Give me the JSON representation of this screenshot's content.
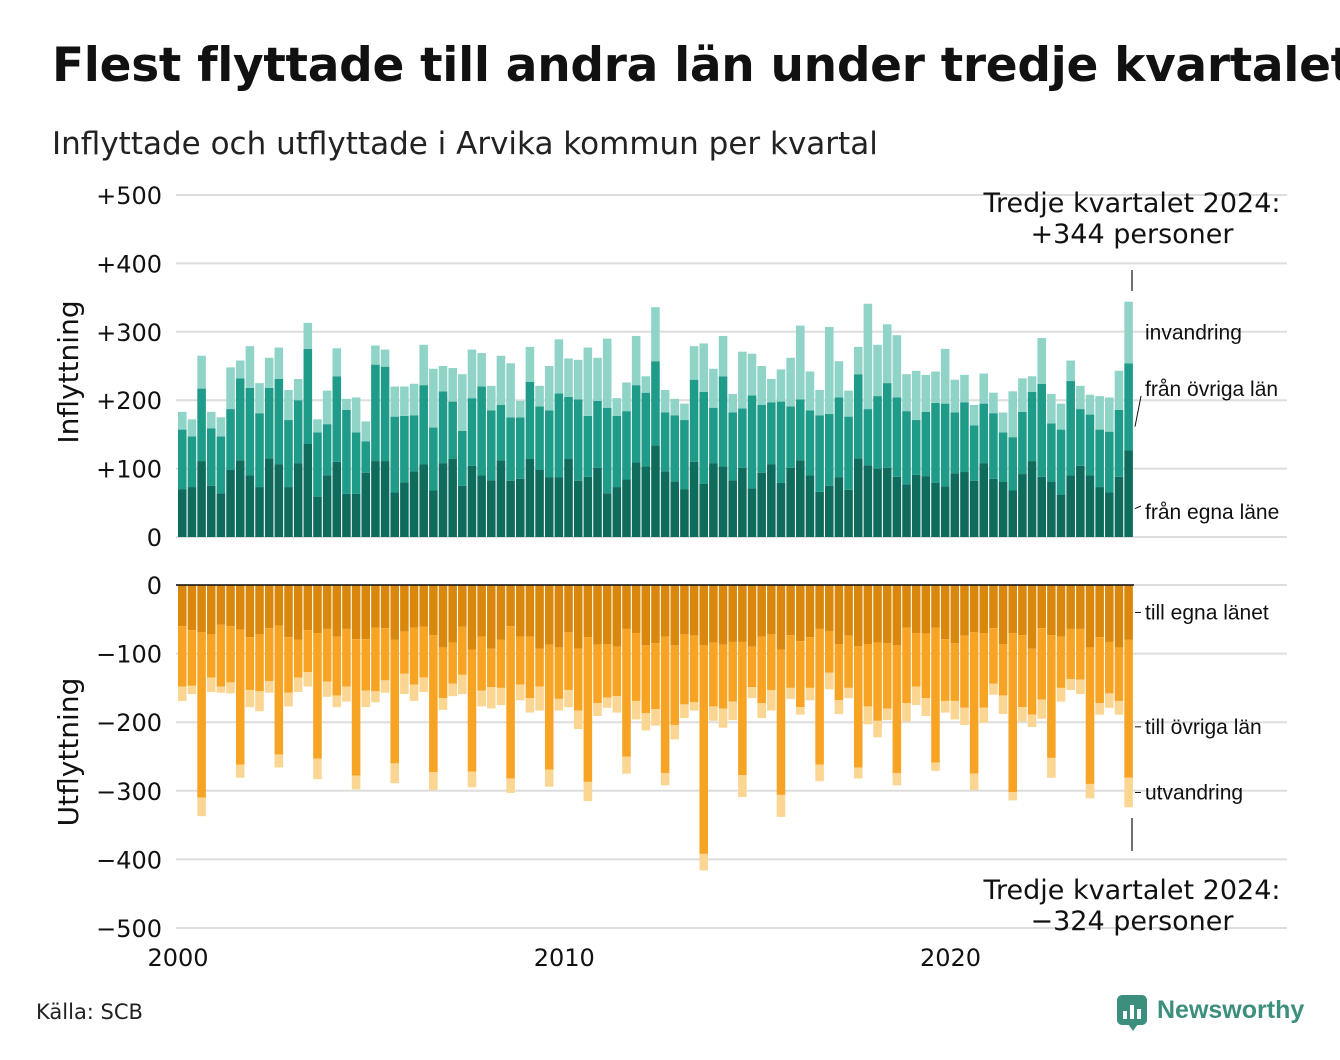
{
  "title": "Flest flyttade till andra län under tredje kvartalet",
  "subtitle": "Inflyttade och utflyttade i Arvika kommun per kvartal",
  "source": "Källa: SCB",
  "brand": "Newsworthy",
  "colors": {
    "in_egna": "#0f6b5c",
    "in_ovriga": "#1f9b89",
    "in_invandring": "#8fd4c7",
    "out_egna": "#d9880d",
    "out_ovriga": "#f7a424",
    "out_utvandring": "#fbd592",
    "brand": "#3d8f7d"
  },
  "chart_data": [
    {
      "type": "bar",
      "stacked": true,
      "ylabel": "Inflyttning",
      "ylim": [
        0,
        500
      ],
      "yticks": [
        0,
        100,
        200,
        300,
        400,
        500
      ],
      "ytick_labels": [
        "0",
        "+100",
        "+200",
        "+300",
        "+400",
        "+500"
      ],
      "x_start": "2000 Q1",
      "x_end": "2024 Q3",
      "x_ticks": [
        "2000",
        "2010",
        "2020"
      ],
      "grid": true,
      "series": [
        {
          "name": "från egna läne",
          "values": [
            70,
            73,
            111,
            75,
            64,
            98,
            112,
            90,
            73,
            115,
            106,
            73,
            108,
            136,
            59,
            90,
            110,
            63,
            63,
            94,
            111,
            111,
            65,
            80,
            96,
            106,
            68,
            108,
            114,
            75,
            104,
            90,
            83,
            112,
            82,
            85,
            114,
            98,
            87,
            87,
            114,
            82,
            88,
            101,
            64,
            73,
            84,
            109,
            103,
            134,
            96,
            81,
            70,
            110,
            78,
            108,
            103,
            83,
            101,
            71,
            94,
            106,
            79,
            101,
            112,
            90,
            66,
            75,
            87,
            69,
            115,
            105,
            100,
            101,
            88,
            77,
            91,
            89,
            79,
            74,
            93,
            95,
            82,
            108,
            85,
            81,
            68,
            92,
            111,
            88,
            81,
            62,
            90,
            104,
            90,
            73,
            65,
            88,
            127
          ]
        },
        {
          "name": "från övriga län",
          "values": [
            87,
            74,
            106,
            84,
            83,
            89,
            120,
            128,
            108,
            103,
            125,
            98,
            92,
            139,
            94,
            75,
            125,
            123,
            90,
            46,
            141,
            138,
            111,
            97,
            82,
            116,
            92,
            105,
            84,
            80,
            99,
            130,
            102,
            81,
            93,
            90,
            113,
            93,
            98,
            123,
            91,
            119,
            89,
            98,
            125,
            104,
            100,
            113,
            108,
            123,
            86,
            97,
            101,
            120,
            134,
            81,
            132,
            99,
            87,
            136,
            99,
            91,
            119,
            90,
            89,
            95,
            112,
            105,
            117,
            107,
            123,
            82,
            106,
            124,
            116,
            107,
            80,
            94,
            117,
            121,
            89,
            102,
            81,
            87,
            96,
            72,
            78,
            91,
            101,
            136,
            85,
            95,
            138,
            83,
            89,
            84,
            89,
            98,
            127
          ]
        },
        {
          "name": "invandring",
          "values": [
            26,
            25,
            48,
            24,
            28,
            61,
            26,
            61,
            44,
            44,
            46,
            44,
            31,
            38,
            19,
            49,
            41,
            16,
            51,
            29,
            28,
            25,
            44,
            43,
            46,
            59,
            86,
            37,
            49,
            83,
            71,
            49,
            36,
            72,
            79,
            24,
            51,
            30,
            65,
            79,
            56,
            58,
            100,
            63,
            101,
            26,
            42,
            72,
            24,
            79,
            33,
            24,
            24,
            49,
            71,
            57,
            59,
            27,
            83,
            61,
            57,
            34,
            47,
            71,
            108,
            57,
            37,
            127,
            53,
            38,
            40,
            154,
            75,
            86,
            91,
            54,
            72,
            54,
            46,
            80,
            48,
            40,
            30,
            44,
            30,
            29,
            67,
            49,
            23,
            67,
            43,
            38,
            30,
            34,
            29,
            49,
            50,
            57,
            90
          ]
        }
      ]
    },
    {
      "type": "bar",
      "stacked": true,
      "ylabel": "Utflyttning",
      "ylim": [
        -500,
        0
      ],
      "yticks": [
        0,
        -100,
        -200,
        -300,
        -400,
        -500
      ],
      "ytick_labels": [
        "0",
        "−100",
        "−200",
        "−300",
        "−400",
        "−500"
      ],
      "x_start": "2000 Q1",
      "x_end": "2024 Q3",
      "x_ticks": [
        "2000",
        "2010",
        "2020"
      ],
      "grid": true,
      "series": [
        {
          "name": "till egna länet",
          "values": [
            -60,
            -66,
            -69,
            -72,
            -58,
            -60,
            -65,
            -76,
            -72,
            -63,
            -59,
            -76,
            -80,
            -66,
            -70,
            -64,
            -75,
            -64,
            -79,
            -79,
            -62,
            -63,
            -80,
            -68,
            -62,
            -61,
            -73,
            -91,
            -84,
            -61,
            -94,
            -75,
            -93,
            -80,
            -60,
            -75,
            -75,
            -93,
            -87,
            -91,
            -69,
            -93,
            -76,
            -87,
            -86,
            -90,
            -64,
            -70,
            -88,
            -85,
            -75,
            -88,
            -72,
            -74,
            -88,
            -84,
            -87,
            -83,
            -83,
            -90,
            -75,
            -72,
            -94,
            -73,
            -82,
            -76,
            -64,
            -67,
            -86,
            -74,
            -89,
            -86,
            -84,
            -85,
            -88,
            -62,
            -70,
            -71,
            -62,
            -79,
            -85,
            -74,
            -69,
            -70,
            -63,
            -86,
            -70,
            -73,
            -93,
            -63,
            -73,
            -75,
            -64,
            -64,
            -91,
            -76,
            -83,
            -91,
            -80
          ]
        },
        {
          "name": "till övriga län",
          "values": [
            -88,
            -81,
            -241,
            -63,
            -90,
            -82,
            -197,
            -77,
            -83,
            -77,
            -188,
            -81,
            -55,
            -61,
            -183,
            -77,
            -86,
            -84,
            -199,
            -75,
            -93,
            -76,
            -180,
            -61,
            -83,
            -74,
            -200,
            -74,
            -60,
            -70,
            -178,
            -79,
            -56,
            -70,
            -222,
            -70,
            -90,
            -55,
            -182,
            -75,
            -84,
            -90,
            -211,
            -85,
            -78,
            -72,
            -186,
            -99,
            -99,
            -96,
            -199,
            -116,
            -102,
            -97,
            -304,
            -93,
            -93,
            -87,
            -194,
            -59,
            -97,
            -81,
            -212,
            -77,
            -96,
            -74,
            -198,
            -61,
            -82,
            -76,
            -177,
            -91,
            -114,
            -95,
            -186,
            -110,
            -78,
            -94,
            -197,
            -90,
            -84,
            -105,
            -206,
            -109,
            -81,
            -75,
            -232,
            -105,
            -96,
            -104,
            -179,
            -75,
            -73,
            -74,
            -199,
            -96,
            -75,
            -78,
            -201
          ]
        },
        {
          "name": "utvandring",
          "values": [
            -21,
            -12,
            -27,
            -21,
            -9,
            -16,
            -19,
            -25,
            -29,
            -17,
            -19,
            -20,
            -21,
            -21,
            -30,
            -22,
            -17,
            -22,
            -20,
            -24,
            -16,
            -18,
            -29,
            -30,
            -24,
            -21,
            -26,
            -17,
            -18,
            -28,
            -23,
            -23,
            -31,
            -25,
            -21,
            -23,
            -21,
            -35,
            -25,
            -17,
            -25,
            -27,
            -28,
            -19,
            -15,
            -24,
            -25,
            -27,
            -25,
            -24,
            -18,
            -21,
            -20,
            -12,
            -24,
            -21,
            -28,
            -27,
            -32,
            -16,
            -22,
            -30,
            -32,
            -16,
            -11,
            -18,
            -24,
            -24,
            -20,
            -15,
            -16,
            -26,
            -24,
            -17,
            -18,
            -27,
            -27,
            -26,
            -12,
            -17,
            -27,
            -25,
            -24,
            -22,
            -16,
            -27,
            -12,
            -21,
            -18,
            -28,
            -29,
            -20,
            -16,
            -21,
            -21,
            -17,
            -21,
            -20,
            -43
          ]
        }
      ]
    }
  ],
  "annotations": {
    "in_header_line1": "Tredje kvartalet 2024:",
    "in_header_line2": "+344 personer",
    "out_header_line1": "Tredje kvartalet 2024:",
    "out_header_line2": "−324 personer",
    "in_labels": [
      "invandring",
      "från övriga län",
      "från egna läne"
    ],
    "out_labels": [
      "till egna länet",
      "till övriga län",
      "utvandring"
    ]
  }
}
